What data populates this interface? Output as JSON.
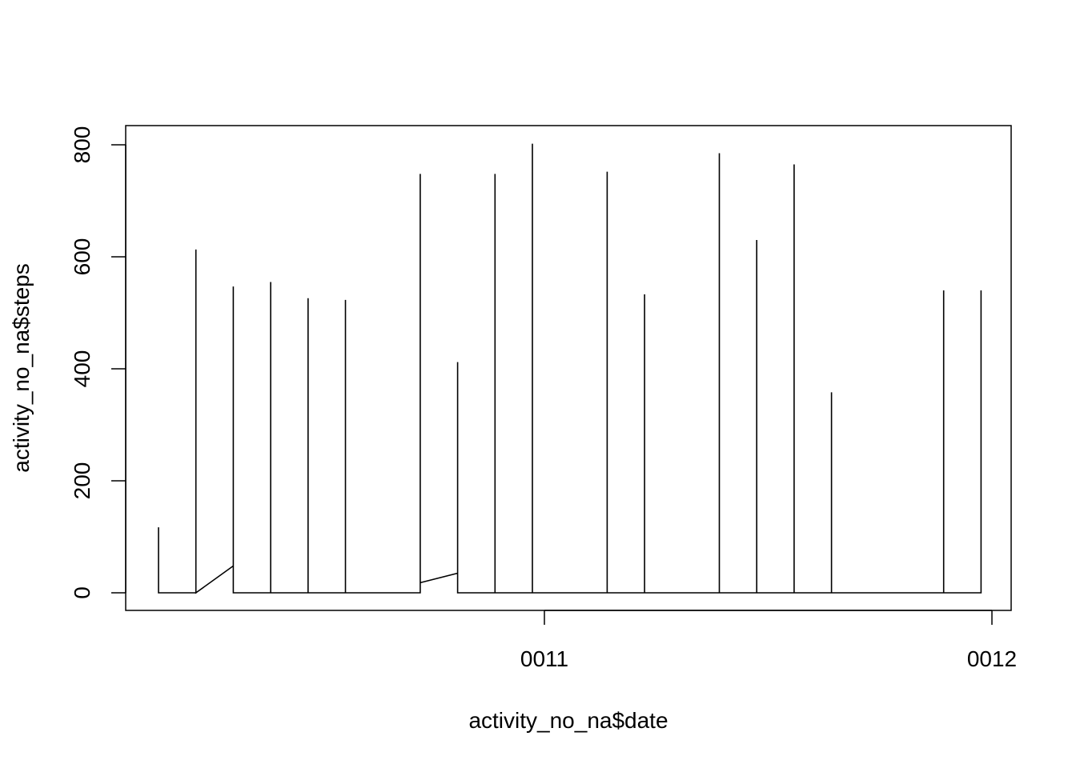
{
  "chart_data": {
    "type": "line",
    "title": "",
    "xlabel": "activity_no_na$date",
    "ylabel": "activity_no_na$steps",
    "x_ticks": [
      "0011",
      "0012"
    ],
    "y_ticks": [
      0,
      200,
      400,
      600,
      800
    ],
    "ylim": [
      -33,
      833
    ],
    "grid": false,
    "legend": "none",
    "line_color": "#000000",
    "series": [
      {
        "values": [
          [
            0.0,
            0
          ],
          [
            0.0,
            117
          ],
          [
            0.0,
            0
          ],
          [
            1.0,
            0
          ],
          [
            1.0,
            613
          ],
          [
            1.0,
            0
          ],
          [
            2.0,
            48
          ],
          [
            2.0,
            547
          ],
          [
            2.0,
            0
          ],
          [
            3.0,
            0
          ],
          [
            3.0,
            555
          ],
          [
            3.0,
            0
          ],
          [
            4.0,
            0
          ],
          [
            4.0,
            526
          ],
          [
            4.0,
            0
          ],
          [
            5.0,
            0
          ],
          [
            5.0,
            523
          ],
          [
            5.0,
            0
          ],
          [
            7.0,
            0
          ],
          [
            7.0,
            748
          ],
          [
            7.0,
            18
          ],
          [
            8.0,
            35
          ],
          [
            8.0,
            412
          ],
          [
            8.0,
            0
          ],
          [
            9.0,
            0
          ],
          [
            9.0,
            748
          ],
          [
            9.0,
            0
          ],
          [
            10.0,
            0
          ],
          [
            10.0,
            802
          ],
          [
            10.0,
            0
          ],
          [
            12.0,
            0
          ],
          [
            12.0,
            752
          ],
          [
            12.0,
            0
          ],
          [
            13.0,
            0
          ],
          [
            13.0,
            533
          ],
          [
            13.0,
            0
          ],
          [
            15.0,
            0
          ],
          [
            15.0,
            785
          ],
          [
            15.0,
            0
          ],
          [
            16.0,
            0
          ],
          [
            16.0,
            630
          ],
          [
            16.0,
            0
          ],
          [
            17.0,
            0
          ],
          [
            17.0,
            765
          ],
          [
            17.0,
            0
          ],
          [
            18.0,
            0
          ],
          [
            18.0,
            358
          ],
          [
            18.0,
            0
          ],
          [
            21.0,
            0
          ],
          [
            21.0,
            540
          ],
          [
            21.0,
            0
          ],
          [
            22.0,
            0
          ],
          [
            22.0,
            540
          ],
          [
            22.0,
            0
          ]
        ]
      }
    ]
  }
}
